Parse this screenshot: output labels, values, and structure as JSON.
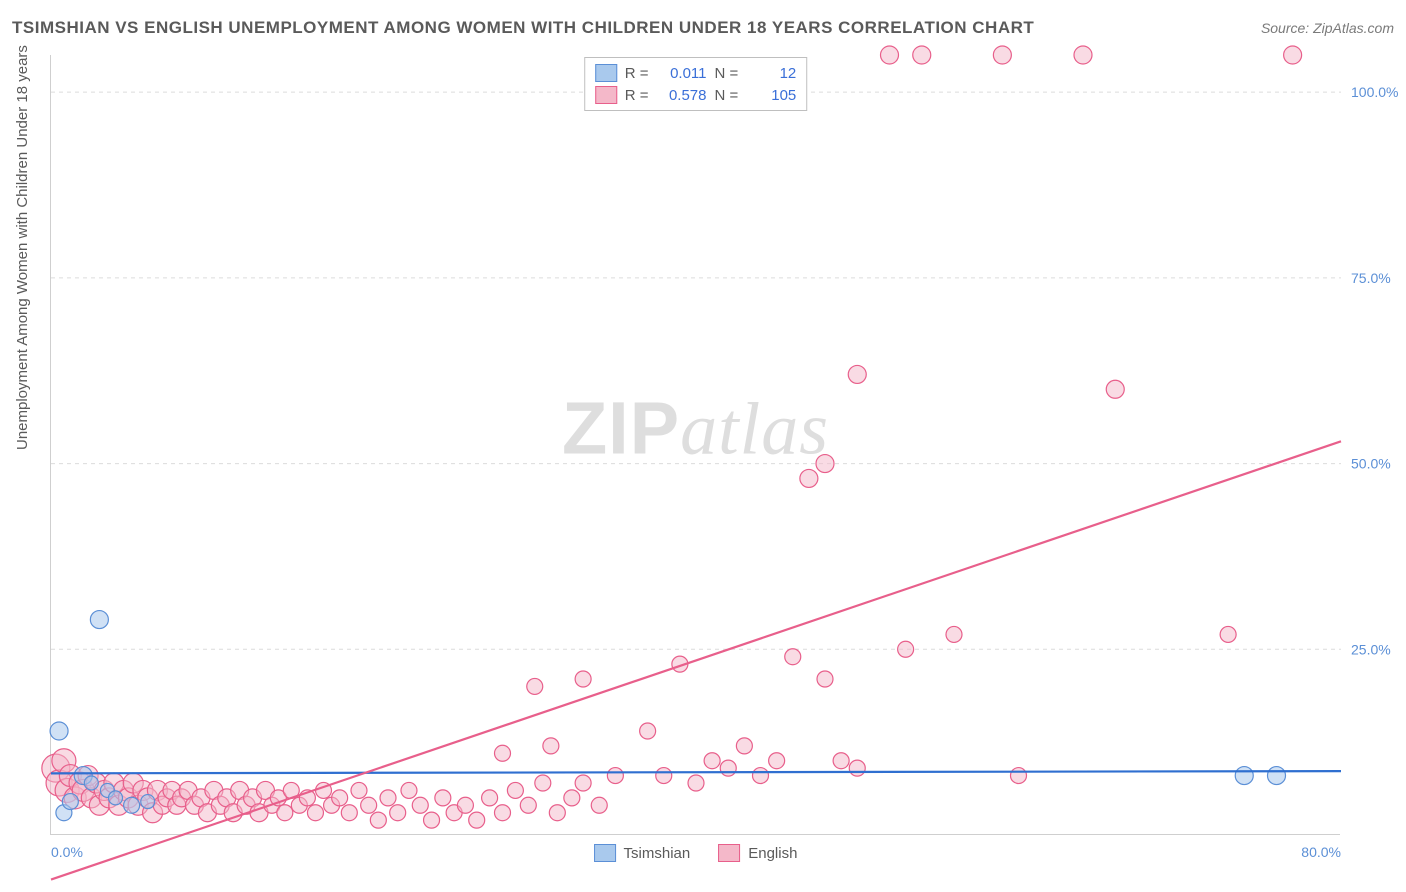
{
  "title": "TSIMSHIAN VS ENGLISH UNEMPLOYMENT AMONG WOMEN WITH CHILDREN UNDER 18 YEARS CORRELATION CHART",
  "source": "Source: ZipAtlas.com",
  "y_axis_label": "Unemployment Among Women with Children Under 18 years",
  "watermark_a": "ZIP",
  "watermark_b": "atlas",
  "chart": {
    "type": "scatter",
    "xlim": [
      0,
      80
    ],
    "ylim": [
      0,
      105
    ],
    "x_ticks": [
      0,
      80
    ],
    "x_tick_labels": [
      "0.0%",
      "80.0%"
    ],
    "y_ticks": [
      25,
      50,
      75,
      100
    ],
    "y_tick_labels": [
      "25.0%",
      "50.0%",
      "75.0%",
      "100.0%"
    ],
    "background_color": "#ffffff",
    "grid_color": "#dcdcdc",
    "axis_color": "#cfcfcf",
    "tick_label_color": "#5b8fd6",
    "series": [
      {
        "name": "Tsimshian",
        "fill": "#a9c9ed",
        "stroke": "#5b8fd6",
        "fill_opacity": 0.55,
        "R": "0.011",
        "N": "12",
        "trend": {
          "y_at_x0": 8.3,
          "y_at_xmax": 8.6,
          "stroke": "#2f6fd0"
        },
        "points": [
          {
            "x": 0.5,
            "y": 14,
            "r": 9
          },
          {
            "x": 0.8,
            "y": 3,
            "r": 8
          },
          {
            "x": 1.2,
            "y": 4.5,
            "r": 8
          },
          {
            "x": 3.0,
            "y": 29,
            "r": 9
          },
          {
            "x": 2.0,
            "y": 8,
            "r": 9
          },
          {
            "x": 2.5,
            "y": 7,
            "r": 7
          },
          {
            "x": 3.5,
            "y": 6,
            "r": 7
          },
          {
            "x": 4.0,
            "y": 5,
            "r": 7
          },
          {
            "x": 5.0,
            "y": 4,
            "r": 8
          },
          {
            "x": 6.0,
            "y": 4.5,
            "r": 7
          },
          {
            "x": 74,
            "y": 8,
            "r": 9
          },
          {
            "x": 76,
            "y": 8,
            "r": 9
          }
        ]
      },
      {
        "name": "English",
        "fill": "#f4b8c9",
        "stroke": "#e85f8b",
        "fill_opacity": 0.5,
        "R": "0.578",
        "N": "105",
        "trend": {
          "y_at_x0": -6,
          "y_at_xmax": 53,
          "stroke": "#e85f8b"
        },
        "points": [
          {
            "x": 0.3,
            "y": 9,
            "r": 14
          },
          {
            "x": 0.5,
            "y": 7,
            "r": 13
          },
          {
            "x": 0.8,
            "y": 10,
            "r": 12
          },
          {
            "x": 1.0,
            "y": 6,
            "r": 12
          },
          {
            "x": 1.2,
            "y": 8,
            "r": 11
          },
          {
            "x": 1.5,
            "y": 5,
            "r": 11
          },
          {
            "x": 1.8,
            "y": 7,
            "r": 11
          },
          {
            "x": 2.0,
            "y": 6,
            "r": 11
          },
          {
            "x": 2.3,
            "y": 8,
            "r": 10
          },
          {
            "x": 2.5,
            "y": 5,
            "r": 10
          },
          {
            "x": 2.8,
            "y": 7,
            "r": 10
          },
          {
            "x": 3.0,
            "y": 4,
            "r": 10
          },
          {
            "x": 3.3,
            "y": 6,
            "r": 10
          },
          {
            "x": 3.6,
            "y": 5,
            "r": 10
          },
          {
            "x": 3.9,
            "y": 7,
            "r": 10
          },
          {
            "x": 4.2,
            "y": 4,
            "r": 10
          },
          {
            "x": 4.5,
            "y": 6,
            "r": 10
          },
          {
            "x": 4.8,
            "y": 5,
            "r": 10
          },
          {
            "x": 5.1,
            "y": 7,
            "r": 10
          },
          {
            "x": 5.4,
            "y": 4,
            "r": 10
          },
          {
            "x": 5.7,
            "y": 6,
            "r": 10
          },
          {
            "x": 6.0,
            "y": 5,
            "r": 10
          },
          {
            "x": 6.3,
            "y": 3,
            "r": 10
          },
          {
            "x": 6.6,
            "y": 6,
            "r": 10
          },
          {
            "x": 6.9,
            "y": 4,
            "r": 9
          },
          {
            "x": 7.2,
            "y": 5,
            "r": 9
          },
          {
            "x": 7.5,
            "y": 6,
            "r": 9
          },
          {
            "x": 7.8,
            "y": 4,
            "r": 9
          },
          {
            "x": 8.1,
            "y": 5,
            "r": 9
          },
          {
            "x": 8.5,
            "y": 6,
            "r": 9
          },
          {
            "x": 8.9,
            "y": 4,
            "r": 9
          },
          {
            "x": 9.3,
            "y": 5,
            "r": 9
          },
          {
            "x": 9.7,
            "y": 3,
            "r": 9
          },
          {
            "x": 10.1,
            "y": 6,
            "r": 9
          },
          {
            "x": 10.5,
            "y": 4,
            "r": 9
          },
          {
            "x": 10.9,
            "y": 5,
            "r": 9
          },
          {
            "x": 11.3,
            "y": 3,
            "r": 9
          },
          {
            "x": 11.7,
            "y": 6,
            "r": 9
          },
          {
            "x": 12.1,
            "y": 4,
            "r": 9
          },
          {
            "x": 12.5,
            "y": 5,
            "r": 9
          },
          {
            "x": 12.9,
            "y": 3,
            "r": 9
          },
          {
            "x": 13.3,
            "y": 6,
            "r": 9
          },
          {
            "x": 13.7,
            "y": 4,
            "r": 8
          },
          {
            "x": 14.1,
            "y": 5,
            "r": 8
          },
          {
            "x": 14.5,
            "y": 3,
            "r": 8
          },
          {
            "x": 14.9,
            "y": 6,
            "r": 8
          },
          {
            "x": 15.4,
            "y": 4,
            "r": 8
          },
          {
            "x": 15.9,
            "y": 5,
            "r": 8
          },
          {
            "x": 16.4,
            "y": 3,
            "r": 8
          },
          {
            "x": 16.9,
            "y": 6,
            "r": 8
          },
          {
            "x": 17.4,
            "y": 4,
            "r": 8
          },
          {
            "x": 17.9,
            "y": 5,
            "r": 8
          },
          {
            "x": 18.5,
            "y": 3,
            "r": 8
          },
          {
            "x": 19.1,
            "y": 6,
            "r": 8
          },
          {
            "x": 19.7,
            "y": 4,
            "r": 8
          },
          {
            "x": 20.3,
            "y": 2,
            "r": 8
          },
          {
            "x": 20.9,
            "y": 5,
            "r": 8
          },
          {
            "x": 21.5,
            "y": 3,
            "r": 8
          },
          {
            "x": 22.2,
            "y": 6,
            "r": 8
          },
          {
            "x": 22.9,
            "y": 4,
            "r": 8
          },
          {
            "x": 23.6,
            "y": 2,
            "r": 8
          },
          {
            "x": 24.3,
            "y": 5,
            "r": 8
          },
          {
            "x": 25,
            "y": 3,
            "r": 8
          },
          {
            "x": 25.7,
            "y": 4,
            "r": 8
          },
          {
            "x": 26.4,
            "y": 2,
            "r": 8
          },
          {
            "x": 27.2,
            "y": 5,
            "r": 8
          },
          {
            "x": 28,
            "y": 3,
            "r": 8
          },
          {
            "x": 28.8,
            "y": 6,
            "r": 8
          },
          {
            "x": 29.6,
            "y": 4,
            "r": 8
          },
          {
            "x": 30.5,
            "y": 7,
            "r": 8
          },
          {
            "x": 31.4,
            "y": 3,
            "r": 8
          },
          {
            "x": 32.3,
            "y": 5,
            "r": 8
          },
          {
            "x": 33,
            "y": 7,
            "r": 8
          },
          {
            "x": 34,
            "y": 4,
            "r": 8
          },
          {
            "x": 35,
            "y": 8,
            "r": 8
          },
          {
            "x": 28,
            "y": 11,
            "r": 8
          },
          {
            "x": 31,
            "y": 12,
            "r": 8
          },
          {
            "x": 30,
            "y": 20,
            "r": 8
          },
          {
            "x": 33,
            "y": 21,
            "r": 8
          },
          {
            "x": 37,
            "y": 14,
            "r": 8
          },
          {
            "x": 38,
            "y": 8,
            "r": 8
          },
          {
            "x": 39,
            "y": 23,
            "r": 8
          },
          {
            "x": 40,
            "y": 7,
            "r": 8
          },
          {
            "x": 41,
            "y": 10,
            "r": 8
          },
          {
            "x": 42,
            "y": 9,
            "r": 8
          },
          {
            "x": 43,
            "y": 12,
            "r": 8
          },
          {
            "x": 44,
            "y": 8,
            "r": 8
          },
          {
            "x": 45,
            "y": 10,
            "r": 8
          },
          {
            "x": 46,
            "y": 24,
            "r": 8
          },
          {
            "x": 47,
            "y": 48,
            "r": 9
          },
          {
            "x": 48,
            "y": 50,
            "r": 9
          },
          {
            "x": 48,
            "y": 21,
            "r": 8
          },
          {
            "x": 49,
            "y": 10,
            "r": 8
          },
          {
            "x": 50,
            "y": 62,
            "r": 9
          },
          {
            "x": 50,
            "y": 9,
            "r": 8
          },
          {
            "x": 52,
            "y": 105,
            "r": 9
          },
          {
            "x": 53,
            "y": 25,
            "r": 8
          },
          {
            "x": 54,
            "y": 105,
            "r": 9
          },
          {
            "x": 56,
            "y": 27,
            "r": 8
          },
          {
            "x": 59,
            "y": 105,
            "r": 9
          },
          {
            "x": 60,
            "y": 8,
            "r": 8
          },
          {
            "x": 64,
            "y": 105,
            "r": 9
          },
          {
            "x": 66,
            "y": 60,
            "r": 9
          },
          {
            "x": 73,
            "y": 27,
            "r": 8
          },
          {
            "x": 77,
            "y": 105,
            "r": 9
          }
        ]
      }
    ]
  },
  "legend_bottom": [
    {
      "label": "Tsimshian",
      "fill": "#a9c9ed",
      "stroke": "#5b8fd6"
    },
    {
      "label": "English",
      "fill": "#f4b8c9",
      "stroke": "#e85f8b"
    }
  ]
}
